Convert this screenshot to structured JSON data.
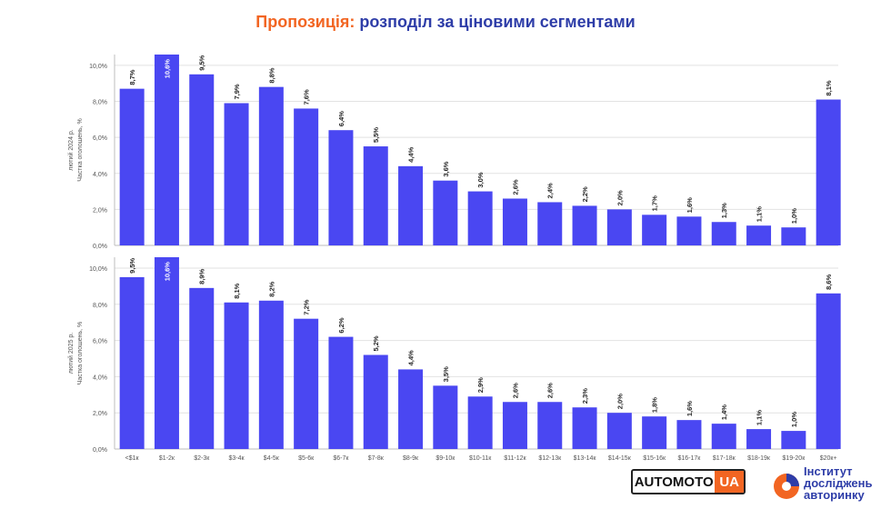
{
  "title": {
    "highlight": "Пропозиція:",
    "rest": "розподіл за ціновими сегментами"
  },
  "colors": {
    "bar": "#4a47f2",
    "grid": "#e2e2e2",
    "axis": "#bdbdbd",
    "title_accent": "#f26522",
    "title_main": "#2e3da8"
  },
  "chart_data": [
    {
      "type": "bar",
      "ylabel_lines": [
        "лютий 2024 р.",
        "Частка оголошень, %"
      ],
      "ylim": [
        0,
        10.6
      ],
      "y_ticks": [
        "0,0%",
        "2,0%",
        "4,0%",
        "6,0%",
        "8,0%",
        "10,0%"
      ],
      "categories": [
        "<$1к",
        "$1-2к",
        "$2-3к",
        "$3-4к",
        "$4-5к",
        "$5-6к",
        "$6-7к",
        "$7-8к",
        "$8-9к",
        "$9-10к",
        "$10-11к",
        "$11-12к",
        "$12-13к",
        "$13-14к",
        "$14-15к",
        "$15-16к",
        "$16-17к",
        "$17-18к",
        "$18-19к",
        "$19-20к",
        "$20к+"
      ],
      "values": [
        8.7,
        10.6,
        9.5,
        7.9,
        8.8,
        7.6,
        6.4,
        5.5,
        4.4,
        3.6,
        3.0,
        2.6,
        2.4,
        2.2,
        2.0,
        1.7,
        1.6,
        1.3,
        1.1,
        1.0,
        8.1
      ],
      "labels": [
        "8,7%",
        "10,6%",
        "9,5%",
        "7,9%",
        "8,8%",
        "7,6%",
        "6,4%",
        "5,5%",
        "4,4%",
        "3,6%",
        "3,0%",
        "2,6%",
        "2,4%",
        "2,2%",
        "2,0%",
        "1,7%",
        "1,6%",
        "1,3%",
        "1,1%",
        "1,0%",
        "8,1%"
      ],
      "show_x_labels": false
    },
    {
      "type": "bar",
      "ylabel_lines": [
        "лютий 2025 р.",
        "Частка оголошень, %"
      ],
      "ylim": [
        0,
        10.6
      ],
      "y_ticks": [
        "0,0%",
        "2,0%",
        "4,0%",
        "6,0%",
        "8,0%",
        "10,0%"
      ],
      "categories": [
        "<$1к",
        "$1-2к",
        "$2-3к",
        "$3-4к",
        "$4-5к",
        "$5-6к",
        "$6-7к",
        "$7-8к",
        "$8-9к",
        "$9-10к",
        "$10-11к",
        "$11-12к",
        "$12-13к",
        "$13-14к",
        "$14-15к",
        "$15-16к",
        "$16-17к",
        "$17-18к",
        "$18-19к",
        "$19-20к",
        "$20к+"
      ],
      "values": [
        9.5,
        10.6,
        8.9,
        8.1,
        8.2,
        7.2,
        6.2,
        5.2,
        4.4,
        3.5,
        2.9,
        2.6,
        2.6,
        2.3,
        2.0,
        1.8,
        1.6,
        1.4,
        1.1,
        1.0,
        8.6
      ],
      "labels": [
        "9,5%",
        "10,6%",
        "8,9%",
        "8,1%",
        "8,2%",
        "7,2%",
        "6,2%",
        "5,2%",
        "4,4%",
        "3,5%",
        "2,9%",
        "2,6%",
        "2,6%",
        "2,3%",
        "2,0%",
        "1,8%",
        "1,6%",
        "1,4%",
        "1,1%",
        "1,0%",
        "8,6%"
      ],
      "show_x_labels": true
    }
  ],
  "logos": {
    "automoto": {
      "main": "AUTOMOTO",
      "accent": "UA"
    },
    "institute": [
      "Інститут",
      "досліджень",
      "авторинку"
    ]
  }
}
